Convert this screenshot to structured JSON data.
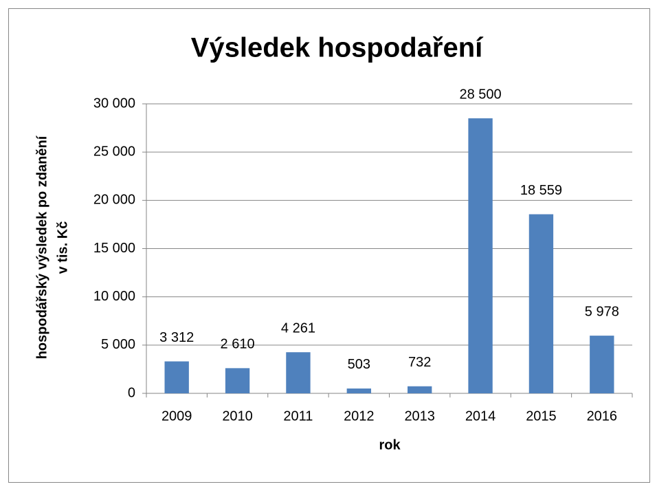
{
  "chart_data": {
    "type": "bar",
    "title": "Výsledek hospodaření",
    "xlabel": "rok",
    "ylabel": [
      "hospodářský výsledek po zdanění",
      "v tis. Kč"
    ],
    "categories": [
      "2009",
      "2010",
      "2011",
      "2012",
      "2013",
      "2014",
      "2015",
      "2016"
    ],
    "values": [
      3312,
      2610,
      4261,
      503,
      732,
      28500,
      18559,
      5978
    ],
    "value_labels": [
      "3 312",
      "2 610",
      "4 261",
      "503",
      "732",
      "28 500",
      "18 559",
      "5 978"
    ],
    "color": "#4f81bd",
    "ylim": [
      0,
      30000
    ],
    "yticks": [
      0,
      {
        "value": 5000,
        "label": "5 000"
      },
      {
        "value": 10000,
        "label": "10 000"
      },
      {
        "value": 15000,
        "label": "15 000"
      },
      {
        "value": 20000,
        "label": "20 000"
      },
      {
        "value": 25000,
        "label": "25 000"
      },
      {
        "value": 30000,
        "label": "30 000"
      }
    ],
    "grid": true
  }
}
